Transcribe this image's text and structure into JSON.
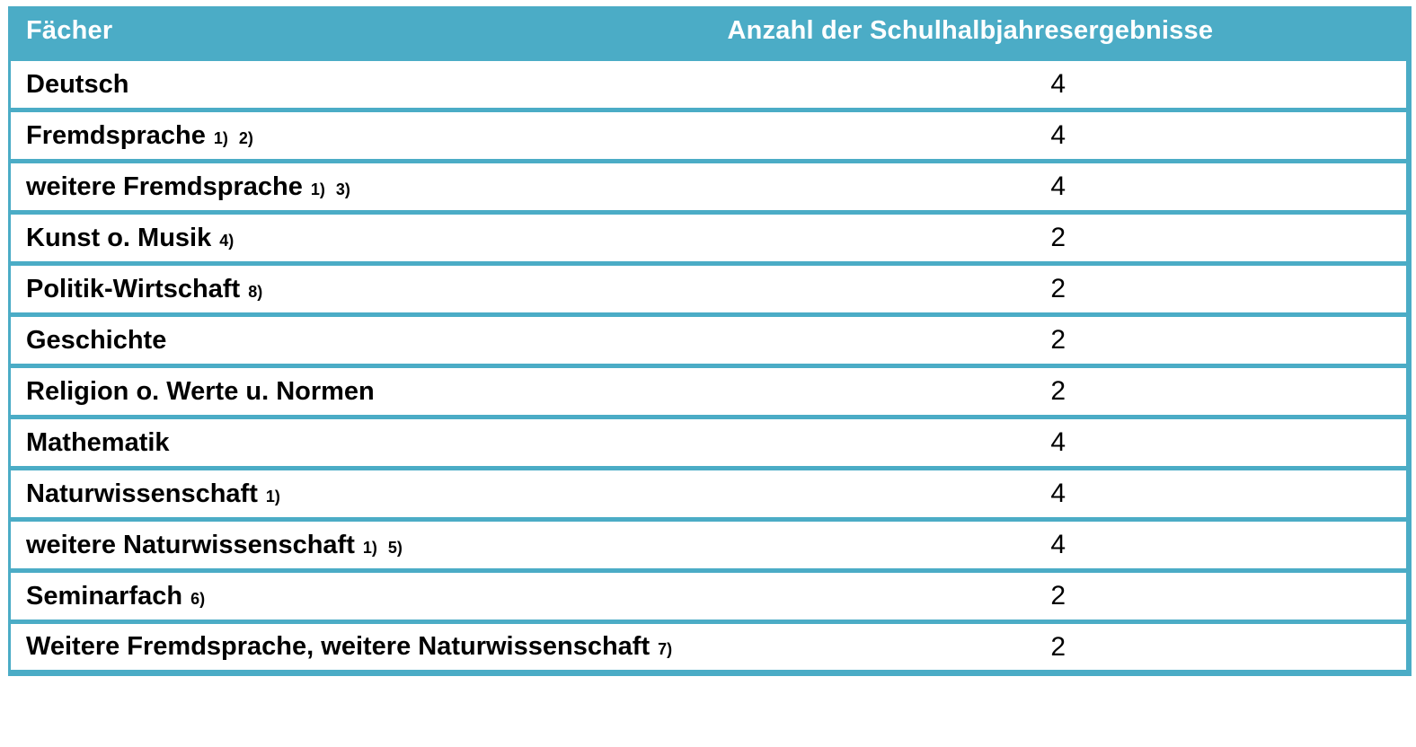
{
  "table": {
    "header": {
      "subject_label": "Fächer",
      "count_label": "Anzahl der Schulhalbjahresergebnisse"
    },
    "rows": [
      {
        "subject": "Deutsch",
        "footnotes": "",
        "count": "4"
      },
      {
        "subject": "Fremdsprache",
        "footnotes": "1) 2)",
        "count": "4"
      },
      {
        "subject": "weitere Fremdsprache",
        "footnotes": "1) 3)",
        "count": "4"
      },
      {
        "subject": "Kunst o. Musik",
        "footnotes": "4)",
        "count": "2"
      },
      {
        "subject": "Politik-Wirtschaft",
        "footnotes": "8)",
        "count": "2"
      },
      {
        "subject": "Geschichte",
        "footnotes": "",
        "count": "2"
      },
      {
        "subject": "Religion o. Werte u. Normen",
        "footnotes": "",
        "count": "2"
      },
      {
        "subject": "Mathematik",
        "footnotes": "",
        "count": "4"
      },
      {
        "subject": "Naturwissenschaft",
        "footnotes": "1)",
        "count": "4"
      },
      {
        "subject": "weitere Naturwissenschaft",
        "footnotes": "1) 5)",
        "count": "4"
      },
      {
        "subject": "Seminarfach",
        "footnotes": "6)",
        "count": "2"
      },
      {
        "subject": "Weitere Fremdsprache, weitere Naturwissenschaft",
        "footnotes": "7)",
        "count": "2"
      }
    ],
    "colors": {
      "accent": "#4BACC6",
      "header_text": "#FFFFFF",
      "body_text": "#000000"
    }
  }
}
